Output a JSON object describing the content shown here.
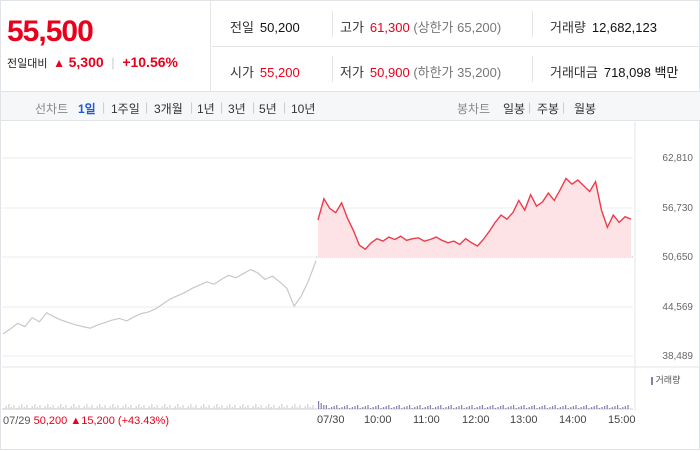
{
  "header": {
    "price": "55,500",
    "change_label": "전일대비",
    "change_arrow": "▲",
    "change_amount": "5,300",
    "change_pct": "+10.56%",
    "stats": {
      "prev_close": {
        "label": "전일",
        "value": "50,200"
      },
      "open": {
        "label": "시가",
        "value": "55,200"
      },
      "high": {
        "label": "고가",
        "value": "61,300",
        "sub": "(상한가 65,200)"
      },
      "low": {
        "label": "저가",
        "value": "50,900",
        "sub": "(하한가 35,200)"
      },
      "volume": {
        "label": "거래량",
        "value": "12,682,123"
      },
      "amount": {
        "label": "거래대금",
        "value": "718,098",
        "unit": "백만"
      }
    }
  },
  "toolbar": {
    "line_chart_label": "선차트",
    "line_ranges": [
      "1일",
      "1주일",
      "3개월",
      "1년",
      "3년",
      "5년",
      "10년"
    ],
    "active_range": "1일",
    "candle_chart_label": "봉차트",
    "candle_ranges": [
      "일봉",
      "주봉",
      "월봉"
    ]
  },
  "chart_data": {
    "type": "line",
    "y_ticks": [
      "62,810",
      "56,730",
      "50,650",
      "44,569",
      "38,489"
    ],
    "ylim": [
      38489,
      62810
    ],
    "reference_line": 50650,
    "x_ticks": [
      "07/29",
      "07/30",
      "10:00",
      "11:00",
      "12:00",
      "13:00",
      "14:00",
      "15:00"
    ],
    "volume_legend": "거래량",
    "prev_day_summary": {
      "date": "07/29",
      "close": "50,200",
      "arrow": "▲",
      "change": "15,200",
      "pct": "(+43.43%)"
    },
    "series": [
      {
        "values": [
          41200,
          41800,
          42500,
          42100,
          43200,
          42700,
          43800,
          43300,
          42900,
          42600,
          42300,
          42100,
          41900,
          42300,
          42600,
          42900,
          43100,
          42800,
          43300,
          43700,
          43900,
          44300,
          44900,
          45500,
          45900,
          46300,
          46800,
          47200,
          47600,
          47300,
          47900,
          48400,
          48100,
          48600,
          49100,
          48700,
          47900,
          48300,
          47600,
          46800,
          44600,
          45900,
          47800,
          50200
        ]
      },
      {
        "values": [
          55200,
          57800,
          56600,
          56100,
          57300,
          55400,
          53900,
          52100,
          51600,
          52400,
          52900,
          52600,
          53100,
          52800,
          53200,
          52700,
          52900,
          53000,
          52600,
          52800,
          53100,
          52700,
          52400,
          52600,
          52200,
          52900,
          52400,
          52000,
          52800,
          53800,
          54900,
          55800,
          55300,
          56100,
          57600,
          56400,
          58300,
          56900,
          57400,
          58500,
          57600,
          58900,
          60300,
          59600,
          60100,
          59400,
          58700,
          59900,
          56400,
          54300,
          55800,
          54900,
          55600,
          55300
        ]
      }
    ]
  },
  "colors": {
    "red": "#e8001c",
    "blue": "#1e5bd8",
    "fill": "#fde3e6",
    "grey_line": "#c8c8c8"
  }
}
